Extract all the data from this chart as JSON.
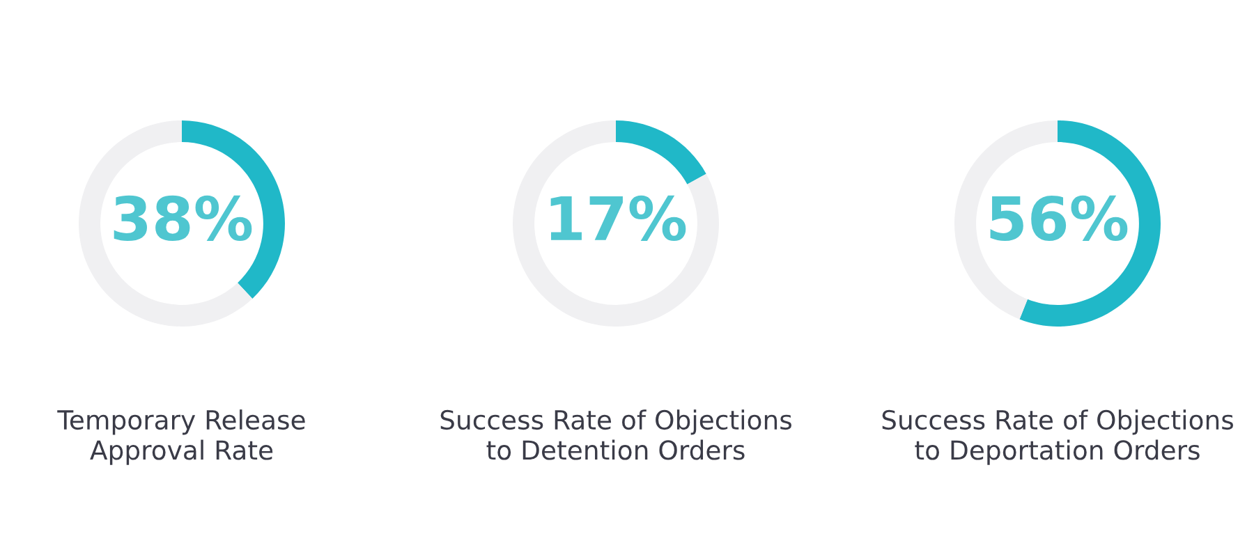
{
  "chart_data": [
    {
      "type": "donut",
      "title": "Temporary Release\nApproval Rate",
      "categories": [
        null,
        null
      ],
      "values": [
        38,
        62
      ],
      "colors": [
        "#20b8c8",
        "#f0f0f2"
      ],
      "value_labels": [
        "38%",
        null
      ]
    },
    {
      "type": "donut",
      "title": "Success Rate of Objections\nto Detention Orders",
      "categories": [
        null,
        null
      ],
      "values": [
        17,
        83
      ],
      "colors": [
        "#20b8c8",
        "#f0f0f2"
      ],
      "value_labels": [
        "17%",
        null
      ]
    },
    {
      "type": "donut",
      "title": "Success Rate of Objections\nto Deportation Orders",
      "categories": [
        null,
        null
      ],
      "values": [
        56,
        44
      ],
      "colors": [
        "#20b8c8",
        "#f0f0f2"
      ],
      "value_labels": [
        "56%",
        null
      ]
    }
  ]
}
